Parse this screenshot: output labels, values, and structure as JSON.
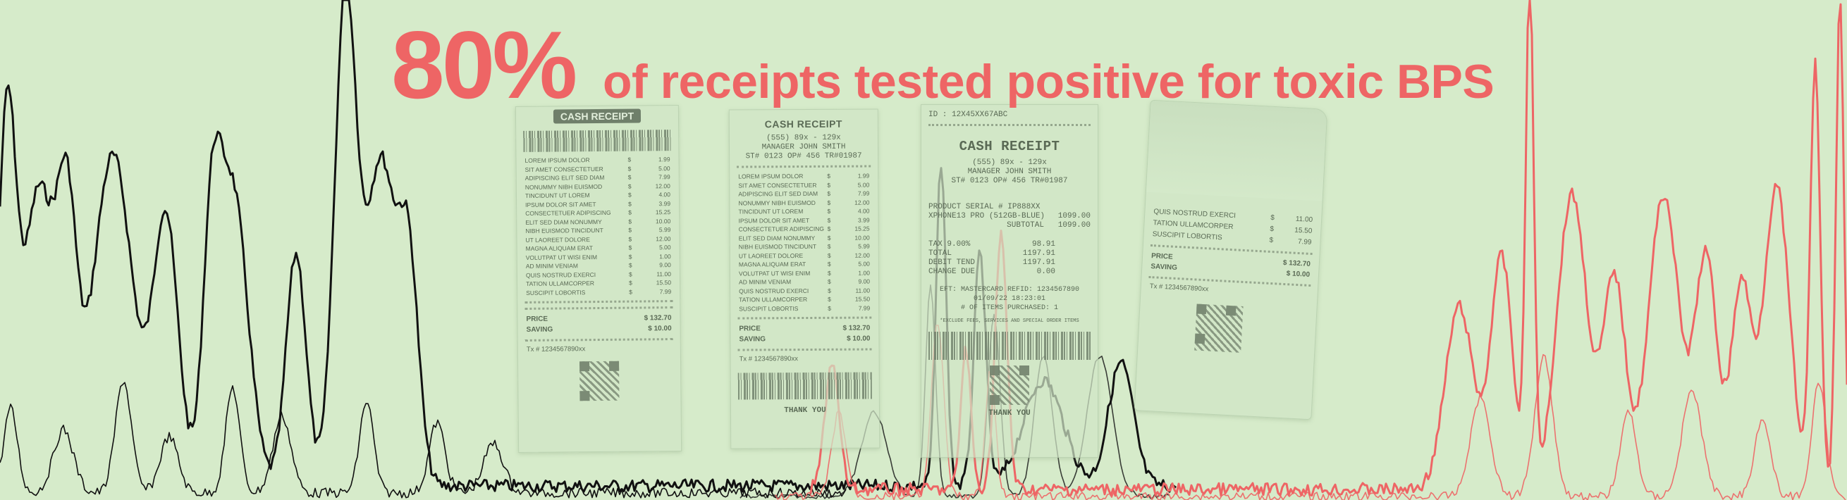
{
  "headline": {
    "percent": "80%",
    "text": "of receipts tested positive for toxic BPS"
  },
  "colors": {
    "background": "#d6ebca",
    "accent_red": "#ee6565",
    "chart_black": "#111111"
  },
  "receipt1": {
    "tag": "CASH RECEIPT",
    "items": [
      {
        "name": "LOREM IPSUM DOLOR",
        "price": "1.99"
      },
      {
        "name": "SIT AMET CONSECTETUER",
        "price": "5.00"
      },
      {
        "name": "ADIPISCING ELIT SED DIAM",
        "price": "7.99"
      },
      {
        "name": "NONUMMY NIBH EUISMOD",
        "price": "12.00"
      },
      {
        "name": "TINCIDUNT UT LOREM",
        "price": "4.00"
      },
      {
        "name": "IPSUM DOLOR SIT AMET",
        "price": "3.99"
      },
      {
        "name": "CONSECTETUER ADIPISCING",
        "price": "15.25"
      },
      {
        "name": "ELIT SED DIAM NONUMMY",
        "price": "10.00"
      },
      {
        "name": "NIBH EUISMOD TINCIDUNT",
        "price": "5.99"
      },
      {
        "name": "UT LAOREET DOLORE",
        "price": "12.00"
      },
      {
        "name": "MAGNA ALIQUAM ERAT",
        "price": "5.00"
      },
      {
        "name": "VOLUTPAT UT WISI ENIM",
        "price": "1.00"
      },
      {
        "name": "AD MINIM VENIAM",
        "price": "9.00"
      },
      {
        "name": "QUIS NOSTRUD EXERCI",
        "price": "11.00"
      },
      {
        "name": "TATION ULLAMCORPER",
        "price": "15.50"
      },
      {
        "name": "SUSCIPIT LOBORTIS",
        "price": "7.99"
      }
    ],
    "currency": "$",
    "price_label": "PRICE",
    "price_value": "$ 132.70",
    "saving_label": "SAVING",
    "saving_value": "$ 10.00",
    "tx": "Tx # 1234567890xx"
  },
  "receipt2": {
    "title": "CASH RECEIPT",
    "phone": "(555) 89x - 129x",
    "manager": "MANAGER JOHN SMITH",
    "store": "ST# 0123  OP# 456 TR#01987",
    "items": [
      {
        "name": "LOREM IPSUM DOLOR",
        "price": "1.99"
      },
      {
        "name": "SIT AMET CONSECTETUER",
        "price": "5.00"
      },
      {
        "name": "ADIPISCING ELIT SED DIAM",
        "price": "7.99"
      },
      {
        "name": "NONUMMY NIBH EUISMOD",
        "price": "12.00"
      },
      {
        "name": "TINCIDUNT UT LOREM",
        "price": "4.00"
      },
      {
        "name": "IPSUM DOLOR SIT AMET",
        "price": "3.99"
      },
      {
        "name": "CONSECTETUER ADIPISCING",
        "price": "15.25"
      },
      {
        "name": "ELIT SED DIAM NONUMMY",
        "price": "10.00"
      },
      {
        "name": "NIBH EUISMOD TINCIDUNT",
        "price": "5.99"
      },
      {
        "name": "UT LAOREET DOLORE",
        "price": "12.00"
      },
      {
        "name": "MAGNA ALIQUAM ERAT",
        "price": "5.00"
      },
      {
        "name": "VOLUTPAT UT WISI ENIM",
        "price": "1.00"
      },
      {
        "name": "AD MINIM VENIAM",
        "price": "9.00"
      },
      {
        "name": "QUIS NOSTRUD EXERCI",
        "price": "11.00"
      },
      {
        "name": "TATION ULLAMCORPER",
        "price": "15.50"
      },
      {
        "name": "SUSCIPIT LOBORTIS",
        "price": "7.99"
      }
    ],
    "currency": "$",
    "price_label": "PRICE",
    "price_value": "$ 132.70",
    "saving_label": "SAVING",
    "saving_value": "$ 10.00",
    "tx": "Tx # 1234567890xx",
    "thanks": "THANK YOU"
  },
  "receipt3": {
    "id": "ID :  12X45XX67ABC",
    "title": "CASH RECEIPT",
    "phone": "(555) 89x - 129x",
    "manager": "MANAGER JOHN SMITH",
    "store": "ST# 0123  OP# 456 TR#01987",
    "serial": "PRODUCT SERIAL # IP888XX",
    "product_name": "XPHONE13 PRO (512GB-BLUE)",
    "product_price": "1099.00",
    "subtotal_label": "SUBTOTAL",
    "subtotal_value": "1099.00",
    "tax_label": "TAX 9.00%",
    "tax_value": "98.91",
    "total_label": "TOTAL",
    "total_value": "1197.91",
    "debit_label": "DEBIT TEND",
    "debit_value": "1197.91",
    "change_label": "CHANGE DUE",
    "change_value": "0.00",
    "card": "EFT: MASTERCARD   REFID: 1234567890",
    "datetime": "01/09/22  18:23:01",
    "items_purchased": "# OF ITEMS PURCHASED: 1",
    "exclude": "*EXCLUDE FEES, SERVICES AND SPECIAL ORDER ITEMS",
    "thanks": "THANK YOU"
  },
  "receipt4": {
    "items": [
      {
        "name": "QUIS NOSTRUD EXERCI",
        "price": "11.00"
      },
      {
        "name": "TATION ULLAMCORPER",
        "price": "15.50"
      },
      {
        "name": "SUSCIPIT LOBORTIS",
        "price": "7.99"
      }
    ],
    "currency": "$",
    "price_label": "PRICE",
    "price_value": "$ 132.70",
    "saving_label": "SAVING",
    "saving_value": "$ 10.00",
    "tx": "Tx # 1234567890xx"
  }
}
